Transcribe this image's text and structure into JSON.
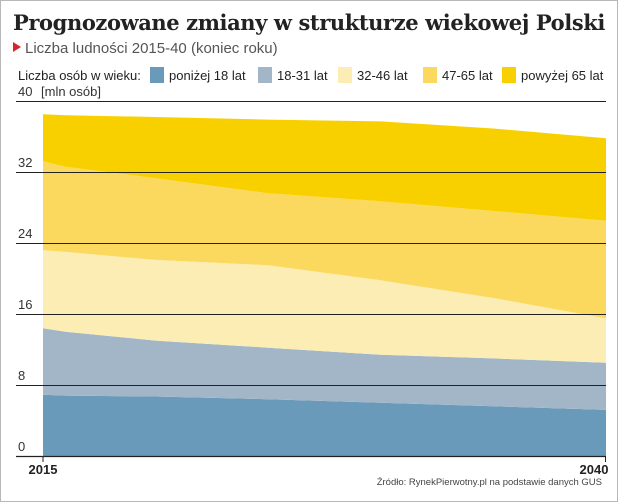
{
  "title": "Prognozowane zmiany w strukturze wiekowej Polski",
  "subtitle": "Liczba ludności 2015-40 (koniec roku)",
  "legend_lead": "Liczba osób w wieku:",
  "source": "Źródło: RynekPierwotny.pl na podstawie danych GUS",
  "chart_data": {
    "type": "area",
    "stacked": true,
    "title": "Prognozowane zmiany w strukturze wiekowej Polski",
    "subtitle": "Liczba ludności 2015-40 (koniec roku)",
    "ylabel": "[mln osób]",
    "xlabel": "",
    "ylim": [
      0,
      40
    ],
    "yticks": [
      0,
      8,
      16,
      24,
      32,
      40
    ],
    "x_tick_labels": [
      "2015",
      "2040"
    ],
    "grid": true,
    "x": [
      2015,
      2016,
      2020,
      2025,
      2030,
      2035,
      2040
    ],
    "series": [
      {
        "name": "poniżej 18 lat",
        "color": "#6a9ab9",
        "values": [
          6.9,
          6.8,
          6.7,
          6.4,
          6.0,
          5.6,
          5.2
        ]
      },
      {
        "name": "18-31 lat",
        "color": "#a3b6c8",
        "values": [
          7.5,
          7.2,
          6.3,
          5.8,
          5.4,
          5.4,
          5.3
        ]
      },
      {
        "name": "32-46 lat",
        "color": "#fbedb3",
        "values": [
          8.8,
          9.0,
          9.1,
          9.3,
          8.4,
          6.8,
          5.0
        ]
      },
      {
        "name": "47-65 lat",
        "color": "#fbd95f",
        "values": [
          10.0,
          9.6,
          9.2,
          8.1,
          8.9,
          9.8,
          11.0
        ]
      },
      {
        "name": "powyżej 65 lat",
        "color": "#f8d000",
        "values": [
          5.3,
          5.8,
          6.9,
          8.3,
          9.0,
          9.3,
          9.3
        ]
      }
    ]
  }
}
